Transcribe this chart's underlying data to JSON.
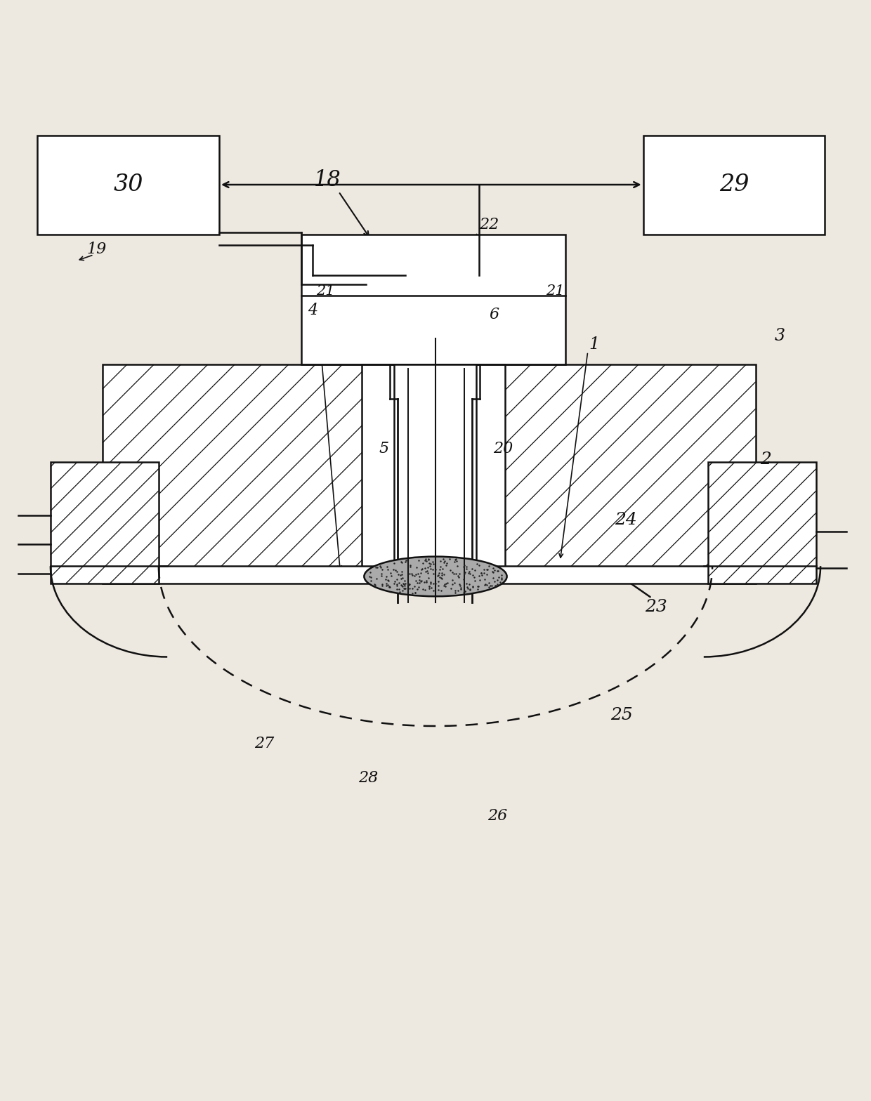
{
  "bg_color": "#ede8e0",
  "line_color": "#111111",
  "figsize": [
    12.4,
    15.68
  ],
  "dpi": 100
}
